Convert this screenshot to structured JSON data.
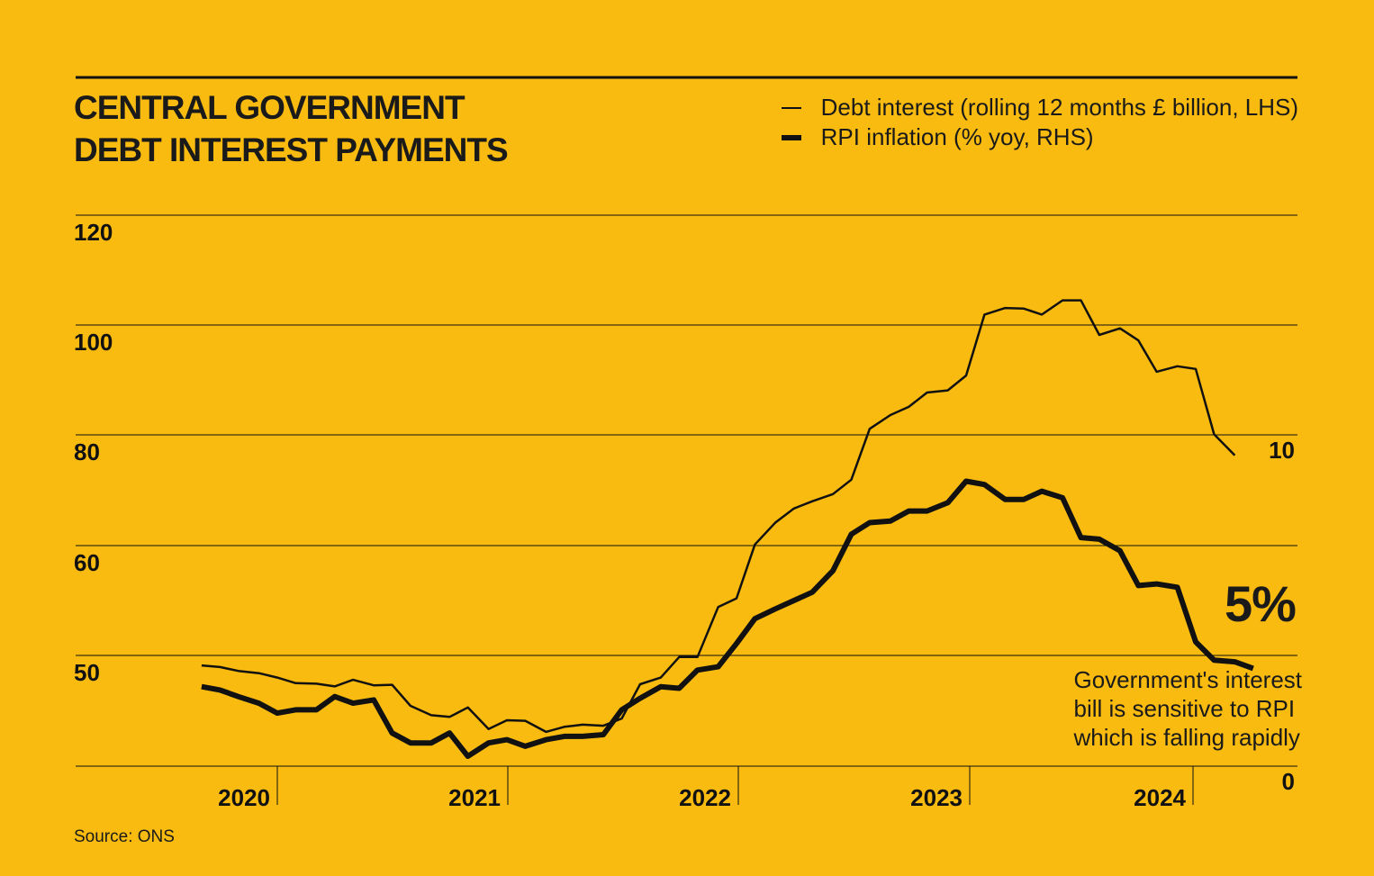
{
  "title_lines": [
    "CENTRAL GOVERNMENT",
    "DEBT INTEREST PAYMENTS"
  ],
  "legend": [
    {
      "label": "Debt interest (rolling 12 months £ billion, LHS)",
      "style": "thin"
    },
    {
      "label": "RPI inflation (% yoy, RHS)",
      "style": "thick"
    }
  ],
  "source": "Source: ONS",
  "annotation": {
    "value_label": "5%",
    "lines": [
      "Government's interest",
      "bill is sensitive to RPI",
      "which is falling rapidly"
    ]
  },
  "colors": {
    "background": "#F9BB10",
    "line": "#111111"
  },
  "chart_data": {
    "type": "line",
    "title": "CENTRAL GOVERNMENT DEBT INTEREST PAYMENTS",
    "xlabel": "",
    "x_tick_labels": [
      "2020",
      "2021",
      "2022",
      "2023",
      "2024"
    ],
    "x_range": [
      2019.33,
      2024.83
    ],
    "left_tick_labels": [
      "120",
      "100",
      "80",
      "60",
      "50"
    ],
    "right_tick_labels": [
      "10",
      "0"
    ],
    "grid": true,
    "legend_position": "top-right",
    "series": [
      {
        "name": "Debt interest (rolling 12 months £ billion, LHS)",
        "axis": "left",
        "values": [
          [
            2019.67,
            48.2
          ],
          [
            2019.75,
            47.9
          ],
          [
            2019.83,
            47.2
          ],
          [
            2019.92,
            46.8
          ],
          [
            2020.0,
            46.0
          ],
          [
            2020.08,
            45.0
          ],
          [
            2020.17,
            44.9
          ],
          [
            2020.25,
            44.4
          ],
          [
            2020.33,
            45.6
          ],
          [
            2020.42,
            44.6
          ],
          [
            2020.5,
            44.7
          ],
          [
            2020.58,
            40.9
          ],
          [
            2020.67,
            39.2
          ],
          [
            2020.75,
            38.9
          ],
          [
            2020.83,
            40.6
          ],
          [
            2020.92,
            36.7
          ],
          [
            2021.0,
            38.3
          ],
          [
            2021.08,
            38.2
          ],
          [
            2021.17,
            36.2
          ],
          [
            2021.25,
            37.1
          ],
          [
            2021.33,
            37.5
          ],
          [
            2021.42,
            37.3
          ],
          [
            2021.5,
            38.6
          ],
          [
            2021.58,
            44.8
          ],
          [
            2021.67,
            46.0
          ],
          [
            2021.75,
            49.7
          ],
          [
            2021.83,
            49.7
          ],
          [
            2021.92,
            54.4
          ],
          [
            2022.0,
            55.2
          ],
          [
            2022.08,
            60.2
          ],
          [
            2022.17,
            64.2
          ],
          [
            2022.25,
            66.7
          ],
          [
            2022.33,
            68.0
          ],
          [
            2022.42,
            69.3
          ],
          [
            2022.5,
            71.9
          ],
          [
            2022.58,
            81.1
          ],
          [
            2022.67,
            83.6
          ],
          [
            2022.75,
            85.1
          ],
          [
            2022.83,
            87.7
          ],
          [
            2022.92,
            88.1
          ],
          [
            2023.0,
            90.8
          ],
          [
            2023.08,
            101.9
          ],
          [
            2023.17,
            103.1
          ],
          [
            2023.25,
            103.0
          ],
          [
            2023.33,
            101.9
          ],
          [
            2023.42,
            104.5
          ],
          [
            2023.5,
            104.5
          ],
          [
            2023.58,
            98.2
          ],
          [
            2023.67,
            99.4
          ],
          [
            2023.75,
            97.2
          ],
          [
            2023.83,
            91.5
          ],
          [
            2023.92,
            92.5
          ],
          [
            2024.0,
            92.0
          ],
          [
            2024.08,
            80.1
          ],
          [
            2024.17,
            76.3
          ]
        ]
      },
      {
        "name": "RPI inflation (% yoy, RHS)",
        "axis": "right",
        "values": [
          [
            2019.67,
            2.4
          ],
          [
            2019.75,
            2.3
          ],
          [
            2019.83,
            2.1
          ],
          [
            2019.92,
            1.9
          ],
          [
            2020.0,
            1.6
          ],
          [
            2020.08,
            1.7
          ],
          [
            2020.17,
            1.7
          ],
          [
            2020.25,
            2.1
          ],
          [
            2020.33,
            1.9
          ],
          [
            2020.42,
            2.0
          ],
          [
            2020.5,
            1.0
          ],
          [
            2020.58,
            0.7
          ],
          [
            2020.67,
            0.7
          ],
          [
            2020.75,
            1.0
          ],
          [
            2020.83,
            0.3
          ],
          [
            2020.92,
            0.7
          ],
          [
            2021.0,
            0.8
          ],
          [
            2021.08,
            0.6
          ],
          [
            2021.17,
            0.8
          ],
          [
            2021.25,
            0.9
          ],
          [
            2021.33,
            0.9
          ],
          [
            2021.42,
            0.95
          ],
          [
            2021.5,
            1.7
          ],
          [
            2021.58,
            2.05
          ],
          [
            2021.67,
            2.4
          ],
          [
            2021.75,
            2.35
          ],
          [
            2021.83,
            2.9
          ],
          [
            2021.92,
            3.0
          ],
          [
            2022.0,
            3.7
          ],
          [
            2022.08,
            4.45
          ],
          [
            2022.17,
            4.75
          ],
          [
            2022.25,
            5.0
          ],
          [
            2022.33,
            5.25
          ],
          [
            2022.42,
            5.9
          ],
          [
            2022.5,
            7.0
          ],
          [
            2022.58,
            7.35
          ],
          [
            2022.67,
            7.4
          ],
          [
            2022.75,
            7.7
          ],
          [
            2022.83,
            7.7
          ],
          [
            2022.92,
            7.95
          ],
          [
            2023.0,
            8.6
          ],
          [
            2023.08,
            8.5
          ],
          [
            2023.17,
            8.05
          ],
          [
            2023.25,
            8.05
          ],
          [
            2023.33,
            8.3
          ],
          [
            2023.42,
            8.1
          ],
          [
            2023.5,
            6.9
          ],
          [
            2023.58,
            6.85
          ],
          [
            2023.67,
            6.5
          ],
          [
            2023.75,
            5.45
          ],
          [
            2023.83,
            5.5
          ],
          [
            2023.92,
            5.4
          ],
          [
            2024.0,
            3.75
          ],
          [
            2024.08,
            3.2
          ],
          [
            2024.17,
            3.15
          ],
          [
            2024.25,
            2.95
          ]
        ]
      }
    ]
  }
}
